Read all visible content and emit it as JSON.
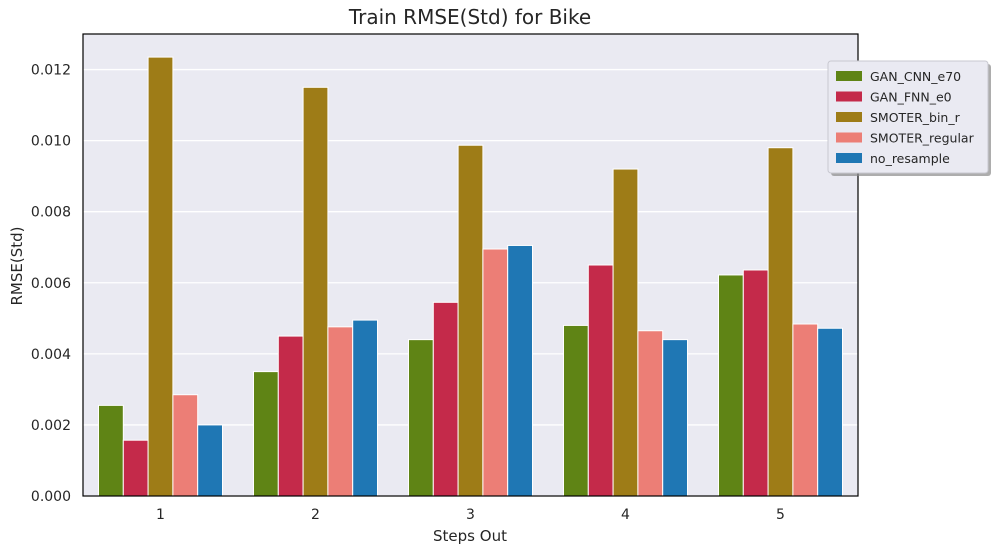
{
  "chart_data": {
    "type": "bar",
    "title": "Train RMSE(Std) for Bike",
    "xlabel": "Steps Out",
    "ylabel": "RMSE(Std)",
    "categories": [
      "1",
      "2",
      "3",
      "4",
      "5"
    ],
    "ylim": [
      0,
      0.013
    ],
    "yticks": [
      "0.000",
      "0.002",
      "0.004",
      "0.006",
      "0.008",
      "0.010",
      "0.012"
    ],
    "grid": true,
    "legend_position": "top-right, outside",
    "series": [
      {
        "name": "GAN_CNN_e70",
        "color": "#5f8415",
        "values": [
          0.00255,
          0.0035,
          0.0044,
          0.0048,
          0.00622
        ]
      },
      {
        "name": "GAN_FNN_e0",
        "color": "#c42a4a",
        "values": [
          0.00157,
          0.0045,
          0.00545,
          0.0065,
          0.00636
        ]
      },
      {
        "name": "SMOTER_bin_r",
        "color": "#9e7c17",
        "values": [
          0.01235,
          0.0115,
          0.00987,
          0.0092,
          0.0098
        ]
      },
      {
        "name": "SMOTER_regular",
        "color": "#ec7e76",
        "values": [
          0.00285,
          0.00476,
          0.00695,
          0.00465,
          0.00484
        ]
      },
      {
        "name": "no_resample",
        "color": "#1f77b4",
        "values": [
          0.002,
          0.00495,
          0.00705,
          0.0044,
          0.00472
        ]
      }
    ]
  }
}
